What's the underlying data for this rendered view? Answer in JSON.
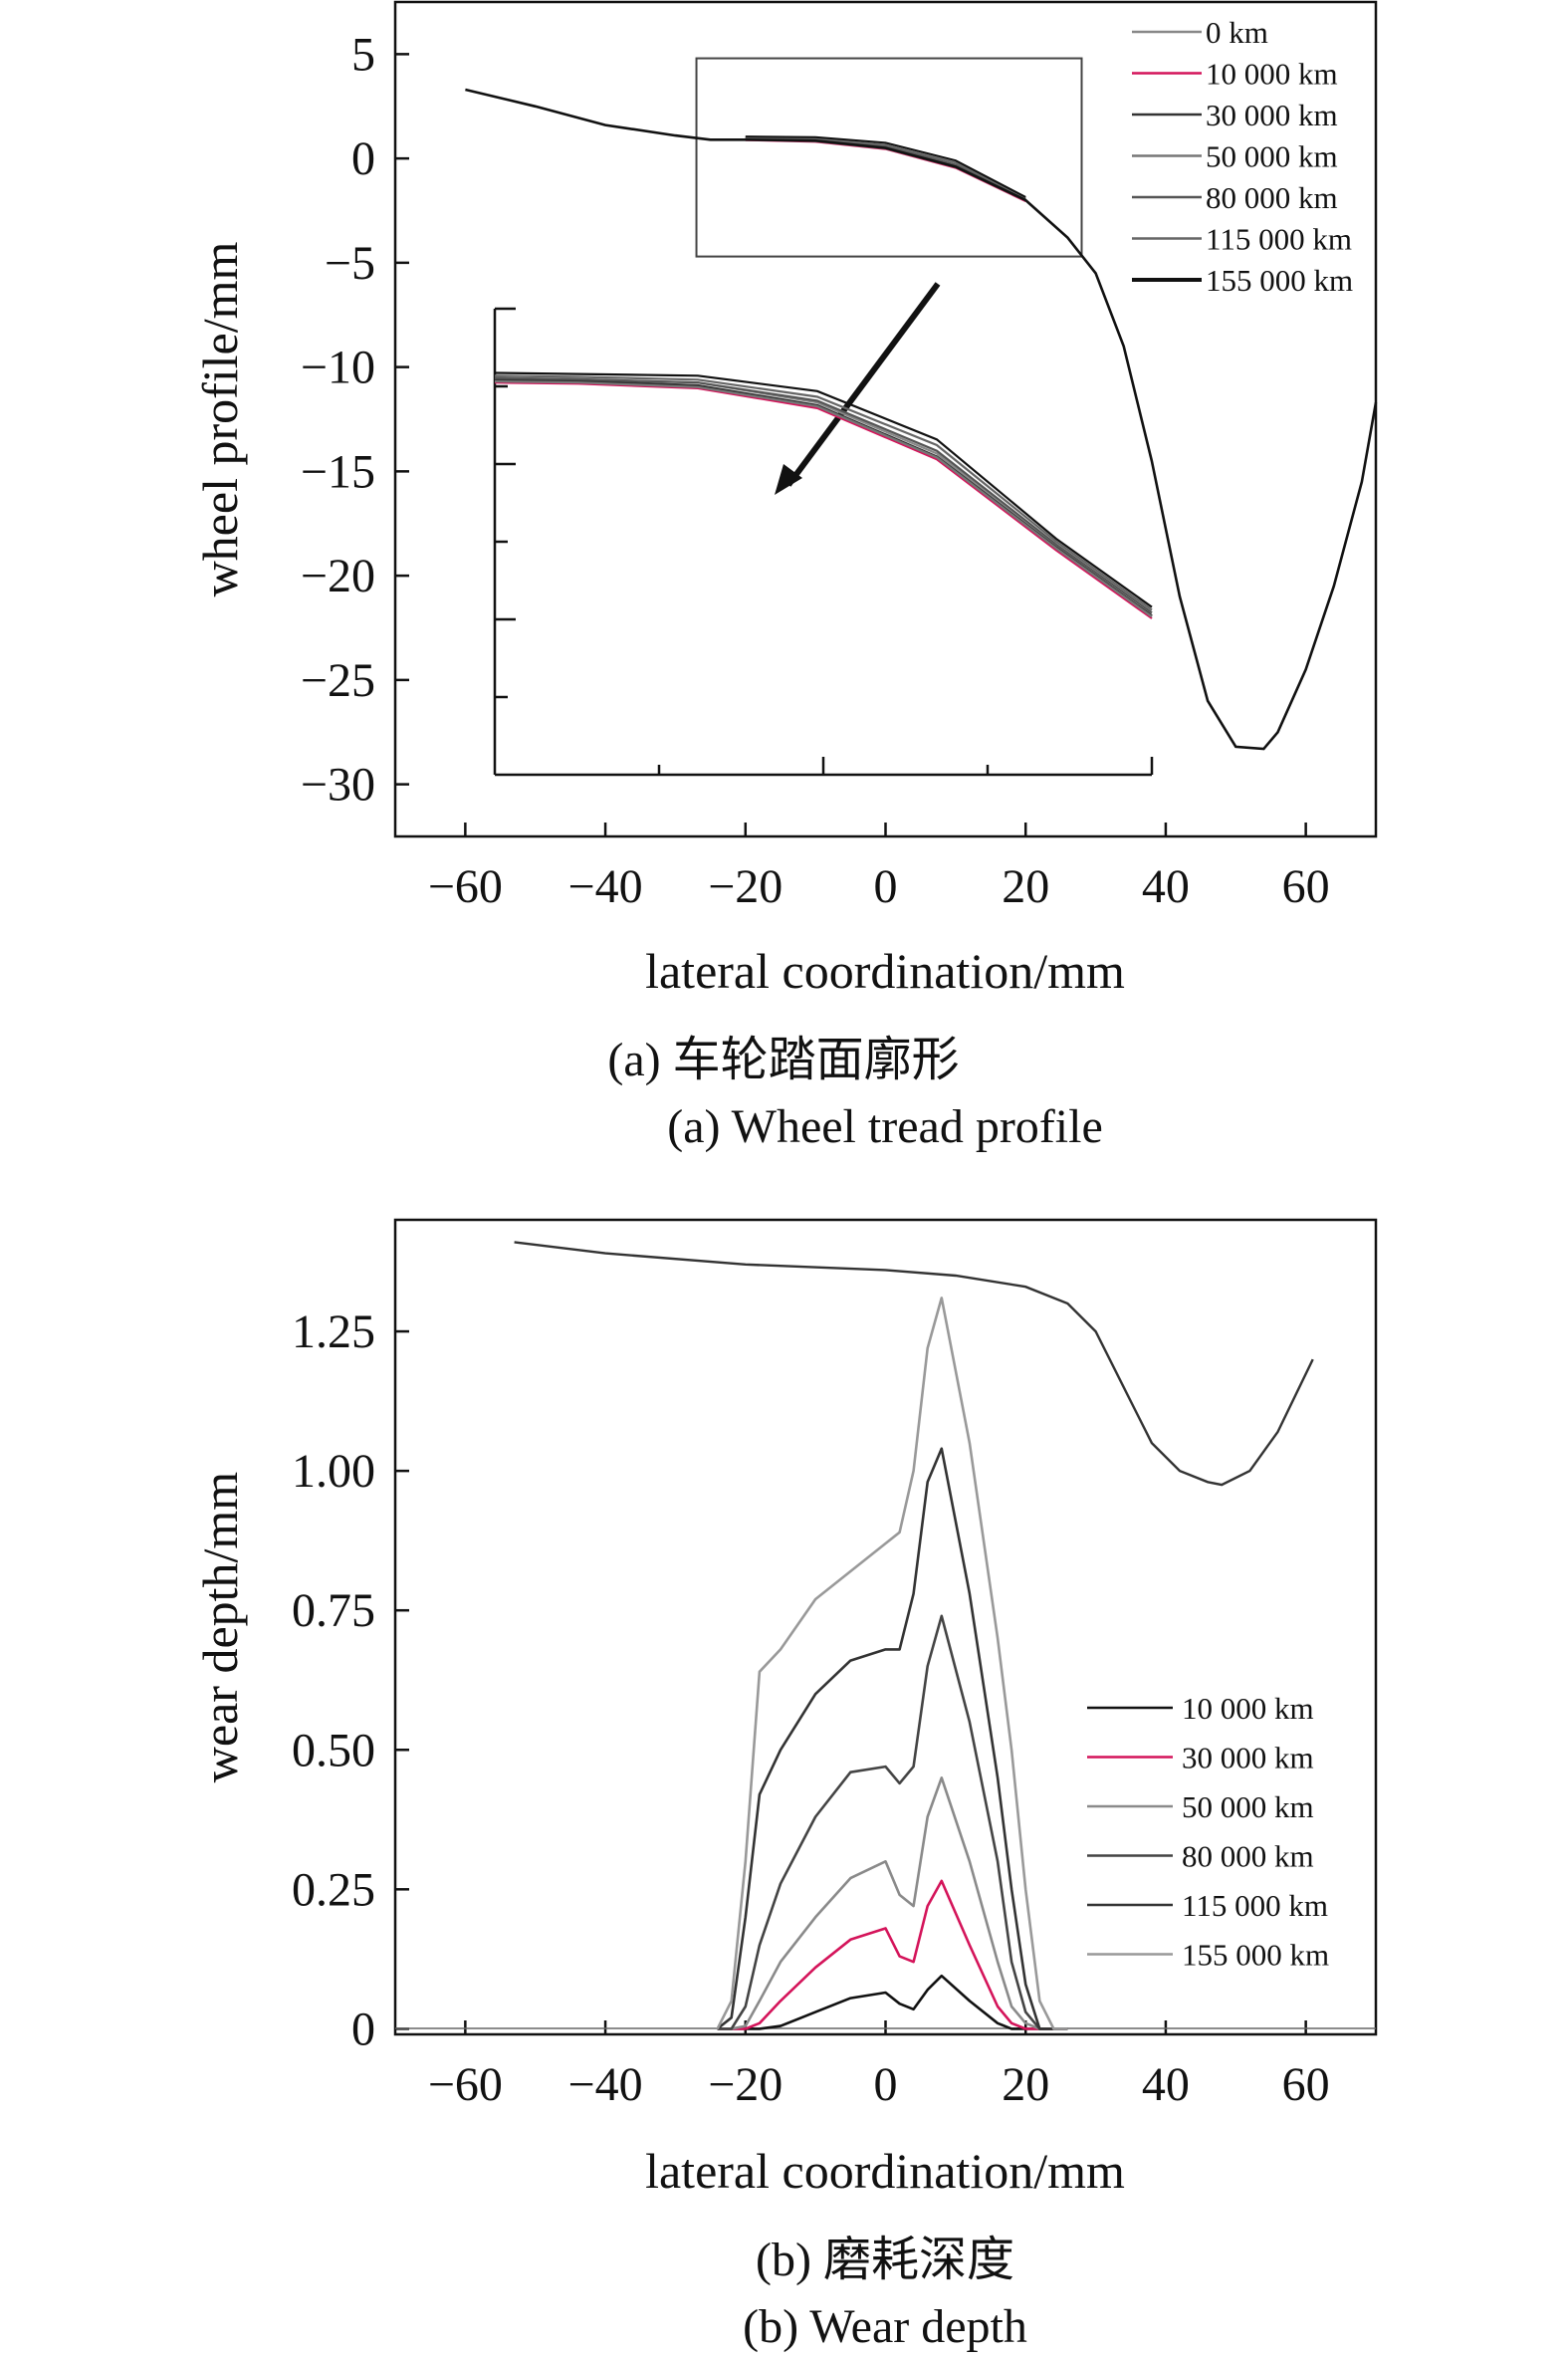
{
  "figure": {
    "caption_a_cn": "(a) 车轮踏面廓形",
    "caption_a_en": "(a) Wheel tread profile",
    "caption_b_cn": "(b) 磨耗深度",
    "caption_b_en": "(b) Wear depth"
  },
  "chart_data": [
    {
      "type": "line",
      "title": "",
      "xlabel": "lateral coordination/mm",
      "ylabel": "wheel profile/mm",
      "xlim": [
        -70,
        70
      ],
      "ylim": [
        -32.5,
        7.5
      ],
      "xticks": [
        -60,
        -40,
        -20,
        0,
        20,
        40,
        60
      ],
      "xtick_labels": [
        "−60",
        "−40",
        "−20",
        "0",
        "20",
        "40",
        "60"
      ],
      "yticks": [
        5,
        0,
        -5,
        -10,
        -15,
        -20,
        -25,
        -30
      ],
      "ytick_labels": [
        "5",
        "0",
        "−5",
        "−10",
        "−15",
        "−20",
        "−25",
        "−30"
      ],
      "legend_position": "top-right",
      "base_profile": {
        "x": [
          -60,
          -50,
          -40,
          -30,
          -25,
          -20,
          -10,
          0,
          10,
          20,
          26,
          30,
          34,
          38,
          42,
          46,
          50,
          54,
          56,
          60,
          64,
          68,
          70
        ],
        "y": [
          3.3,
          2.5,
          1.6,
          1.1,
          0.9,
          0.9,
          0.85,
          0.5,
          -0.4,
          -2.0,
          -3.8,
          -5.5,
          -9.0,
          -14.5,
          -21.0,
          -26.0,
          -28.2,
          -28.3,
          -27.5,
          -24.5,
          -20.5,
          -15.5,
          -11.7
        ]
      },
      "series": [
        {
          "name": "0 km",
          "color": "#888888",
          "y": [
            0.95,
            0.9,
            0.55,
            -0.35,
            -2.0
          ]
        },
        {
          "name": "10 000 km",
          "color": "#d4145a",
          "y": [
            0.88,
            0.8,
            0.45,
            -0.45,
            -2.05
          ]
        },
        {
          "name": "30 000 km",
          "color": "#333333",
          "y": [
            0.93,
            0.85,
            0.5,
            -0.4,
            -2.0
          ]
        },
        {
          "name": "50 000 km",
          "color": "#777777",
          "y": [
            0.9,
            0.82,
            0.48,
            -0.42,
            -2.02
          ]
        },
        {
          "name": "80 000 km",
          "color": "#555555",
          "y": [
            0.96,
            0.9,
            0.58,
            -0.3,
            -1.95
          ]
        },
        {
          "name": "115 000 km",
          "color": "#666666",
          "y": [
            1.0,
            0.95,
            0.65,
            -0.2,
            -1.9
          ]
        },
        {
          "name": "155 000 km",
          "color": "#111111",
          "y": [
            1.05,
            1.02,
            0.75,
            -0.1,
            -1.85
          ]
        }
      ],
      "series_x": [
        -20,
        -10,
        0,
        10,
        20
      ],
      "zoom_box": {
        "xlim": [
          -27,
          28
        ],
        "ylim": [
          -4.7,
          4.8
        ]
      }
    },
    {
      "type": "line",
      "title": "",
      "xlabel": "lateral coordination/mm",
      "ylabel": "wear depth/mm",
      "xlim": [
        -70,
        70
      ],
      "ylim": [
        -0.01,
        1.45
      ],
      "xticks": [
        -60,
        -40,
        -20,
        0,
        20,
        40,
        60
      ],
      "xtick_labels": [
        "−60",
        "−40",
        "−20",
        "0",
        "20",
        "40",
        "60"
      ],
      "yticks": [
        1.25,
        1.0,
        0.75,
        0.5,
        0.25,
        0
      ],
      "ytick_labels": [
        "1.25",
        "1.00",
        "0.75",
        "0.50",
        "0.25",
        "0"
      ],
      "legend_position": "bottom-right",
      "reference_profile": {
        "x": [
          -53,
          -40,
          -20,
          0,
          10,
          20,
          26,
          30,
          34,
          38,
          42,
          46,
          48,
          52,
          56,
          61
        ],
        "y": [
          1.41,
          1.39,
          1.37,
          1.36,
          1.35,
          1.33,
          1.3,
          1.25,
          1.15,
          1.05,
          1.0,
          0.98,
          0.975,
          1.0,
          1.07,
          1.2
        ]
      },
      "series_x": [
        -24,
        -22,
        -20,
        -18,
        -15,
        -10,
        -5,
        0,
        2,
        4,
        6,
        8,
        12,
        16,
        18,
        20,
        22,
        24,
        26
      ],
      "series": [
        {
          "name": "10 000 km",
          "color": "#111111",
          "y": [
            0,
            0,
            0,
            0,
            0.005,
            0.03,
            0.055,
            0.065,
            0.045,
            0.035,
            0.07,
            0.095,
            0.05,
            0.01,
            0,
            0,
            0,
            0,
            0
          ]
        },
        {
          "name": "30 000 km",
          "color": "#d4145a",
          "y": [
            0,
            0,
            0,
            0.01,
            0.05,
            0.11,
            0.16,
            0.18,
            0.13,
            0.12,
            0.22,
            0.265,
            0.15,
            0.04,
            0.01,
            0,
            0,
            0,
            0
          ]
        },
        {
          "name": "50 000 km",
          "color": "#8a8a8a",
          "y": [
            0,
            0,
            0.005,
            0.05,
            0.12,
            0.2,
            0.27,
            0.3,
            0.24,
            0.22,
            0.38,
            0.45,
            0.3,
            0.12,
            0.04,
            0.01,
            0,
            0,
            0
          ]
        },
        {
          "name": "80 000 km",
          "color": "#444444",
          "y": [
            0,
            0,
            0.04,
            0.15,
            0.26,
            0.38,
            0.46,
            0.47,
            0.44,
            0.47,
            0.65,
            0.74,
            0.55,
            0.3,
            0.12,
            0.03,
            0,
            0,
            0
          ]
        },
        {
          "name": "115 000 km",
          "color": "#333333",
          "y": [
            0,
            0.02,
            0.2,
            0.42,
            0.5,
            0.6,
            0.66,
            0.68,
            0.68,
            0.78,
            0.98,
            1.04,
            0.78,
            0.45,
            0.25,
            0.08,
            0,
            0,
            0
          ]
        },
        {
          "name": "155 000 km",
          "color": "#999999",
          "y": [
            0,
            0.05,
            0.3,
            0.64,
            0.68,
            0.77,
            0.82,
            0.87,
            0.89,
            1.0,
            1.22,
            1.31,
            1.05,
            0.7,
            0.5,
            0.25,
            0.05,
            0,
            0
          ]
        }
      ]
    }
  ]
}
